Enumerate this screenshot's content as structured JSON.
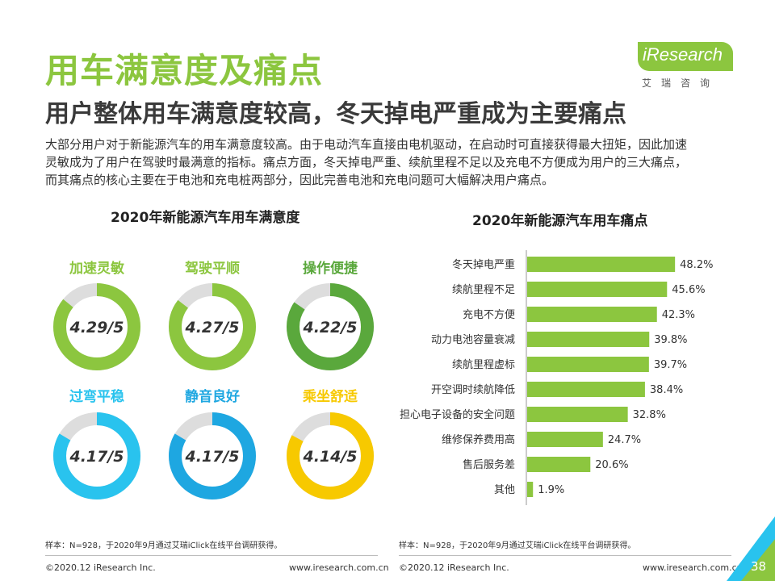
{
  "header": {
    "title": "用车满意度及痛点",
    "subtitle": "用户整体用车满意度较高，冬天掉电严重成为主要痛点",
    "intro_lines": [
      "大部分用户对于新能源汽车的用车满意度较高。由于电动汽车直接由电机驱动，在启动时可直接获得最大扭矩，因此加速",
      "灵敏成为了用户在驾驶时最满意的指标。痛点方面，冬天掉电严重、续航里程不足以及充电不方便成为用户的三大痛点，",
      "而其痛点的核心主要在于电池和充电桩两部分，因此完善电池和充电问题可大幅解决用户痛点。"
    ]
  },
  "logo": {
    "text": "iResearch",
    "sub": "艾瑞咨询"
  },
  "left_panel": {
    "title": "2020年新能源汽车用车满意度"
  },
  "right_panel": {
    "title": "2020年新能源汽车用车痛点"
  },
  "colors": {
    "brand_green": "#8cc63f",
    "donut_green_light": "#8cc63f",
    "donut_green_dark": "#5aa83c",
    "donut_blue_light": "#29c3ee",
    "donut_blue_dark": "#1ea7e1",
    "donut_yellow": "#f7c900",
    "donut_track": "#dddddd",
    "bar_green": "#8cc63f"
  },
  "chart_data": [
    {
      "type": "donut",
      "title": "2020年新能源汽车用车满意度",
      "scale_max": 5,
      "items": [
        {
          "label": "加速灵敏",
          "value": 4.29,
          "display": "4.29/5"
        },
        {
          "label": "驾驶平顺",
          "value": 4.27,
          "display": "4.27/5"
        },
        {
          "label": "操作便捷",
          "value": 4.22,
          "display": "4.22/5"
        },
        {
          "label": "过弯平稳",
          "value": 4.17,
          "display": "4.17/5"
        },
        {
          "label": "静音良好",
          "value": 4.17,
          "display": "4.17/5"
        },
        {
          "label": "乘坐舒适",
          "value": 4.14,
          "display": "4.14/5"
        }
      ]
    },
    {
      "type": "bar",
      "orientation": "horizontal",
      "title": "2020年新能源汽车用车痛点",
      "categories": [
        "冬天掉电严重",
        "续航里程不足",
        "充电不方便",
        "动力电池容量衰减",
        "续航里程虚标",
        "开空调时续航降低",
        "担心电子设备的安全问题",
        "维修保养费用高",
        "售后服务差",
        "其他"
      ],
      "values": [
        48.2,
        45.6,
        42.3,
        39.8,
        39.7,
        38.4,
        32.8,
        24.7,
        20.6,
        1.9
      ],
      "value_labels": [
        "48.2%",
        "45.6%",
        "42.3%",
        "39.8%",
        "39.7%",
        "38.4%",
        "32.8%",
        "24.7%",
        "20.6%",
        "1.9%"
      ]
    }
  ],
  "footer": {
    "note_left": "样本：N=928，于2020年9月通过艾瑞iClick在线平台调研获得。",
    "note_right": "样本：N=928，于2020年9月通过艾瑞iClick在线平台调研获得。",
    "copyright_left": "©2020.12 iResearch Inc.",
    "url_left": "www.iresearch.com.cn",
    "copyright_right": "©2020.12 iResearch Inc.",
    "url_right": "www.iresearch.com.cn",
    "page": "38"
  }
}
